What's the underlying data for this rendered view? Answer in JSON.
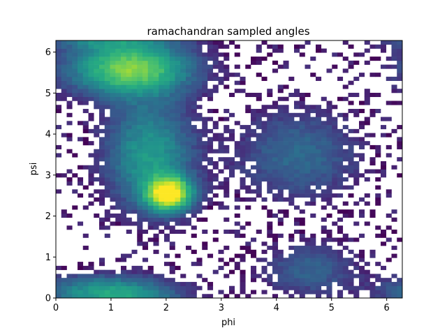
{
  "chart_data": {
    "type": "heatmap",
    "title": "ramachandran sampled angles",
    "xlabel": "phi",
    "ylabel": "psi",
    "xlim": [
      0,
      6.283
    ],
    "ylim": [
      0,
      6.283
    ],
    "x_ticks": [
      "0",
      "1",
      "2",
      "3",
      "4",
      "5",
      "6"
    ],
    "y_ticks": [
      "0",
      "1",
      "2",
      "3",
      "4",
      "5",
      "6"
    ],
    "bins": [
      64,
      64
    ],
    "colormap": "viridis",
    "empty_bins": "white",
    "density_peaks": [
      {
        "phi": 2.05,
        "psi": 2.55,
        "relative_density": 1.0,
        "spread_phi": 0.28,
        "spread_psi": 0.28
      },
      {
        "phi": 1.35,
        "psi": 5.6,
        "relative_density": 0.75,
        "spread_phi": 0.75,
        "spread_psi": 0.45
      },
      {
        "phi": 1.7,
        "psi": 3.5,
        "relative_density": 0.45,
        "spread_phi": 0.55,
        "spread_psi": 0.9
      },
      {
        "phi": 0.9,
        "psi": 0.2,
        "relative_density": 0.4,
        "spread_phi": 0.8,
        "spread_psi": 0.25
      },
      {
        "phi": 4.4,
        "psi": 3.5,
        "relative_density": 0.25,
        "spread_phi": 0.75,
        "spread_psi": 0.75
      },
      {
        "phi": 4.6,
        "psi": 0.7,
        "relative_density": 0.22,
        "spread_phi": 0.6,
        "spread_psi": 0.45
      }
    ]
  }
}
